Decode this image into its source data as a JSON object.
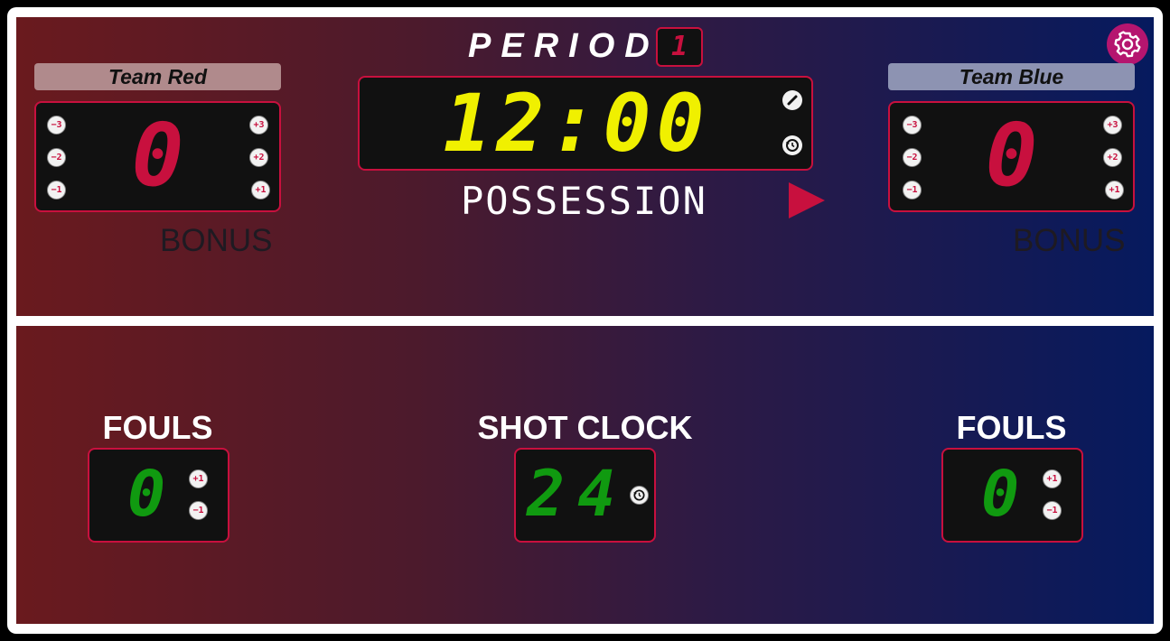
{
  "period": {
    "label": "PERIOD",
    "value": "1"
  },
  "teams": {
    "red": {
      "name": "Team Red",
      "score": "0",
      "bonus_label": "BONUS",
      "buttons": {
        "minus3": "−3",
        "minus2": "−2",
        "minus1": "−1",
        "plus3": "+3",
        "plus2": "+2",
        "plus1": "+1"
      }
    },
    "blue": {
      "name": "Team Blue",
      "score": "0",
      "bonus_label": "BONUS",
      "buttons": {
        "minus3": "−3",
        "minus2": "−2",
        "minus1": "−1",
        "plus3": "+3",
        "plus2": "+2",
        "plus1": "+1"
      }
    }
  },
  "game_clock": {
    "time": "12:00",
    "edit_icon": "pencil-icon",
    "reset_icon": "reset-clock-icon"
  },
  "possession": {
    "label": "POSSESSION",
    "direction": "right",
    "arrow_icon": "play-triangle-icon"
  },
  "settings": {
    "icon": "gear-icon"
  },
  "fouls": {
    "label": "FOULS",
    "red": {
      "value": "0",
      "plus": "+1",
      "minus": "−1"
    },
    "blue": {
      "value": "0",
      "plus": "+1",
      "minus": "−1"
    }
  },
  "shot_clock": {
    "label": "SHOT CLOCK",
    "value": "24",
    "reset_icon": "reset-clock-icon"
  },
  "colors": {
    "accent": "#c8103e",
    "clock_digit": "#f0f000",
    "foul_digit": "#109a10",
    "settings_bg": "#b5156f"
  }
}
